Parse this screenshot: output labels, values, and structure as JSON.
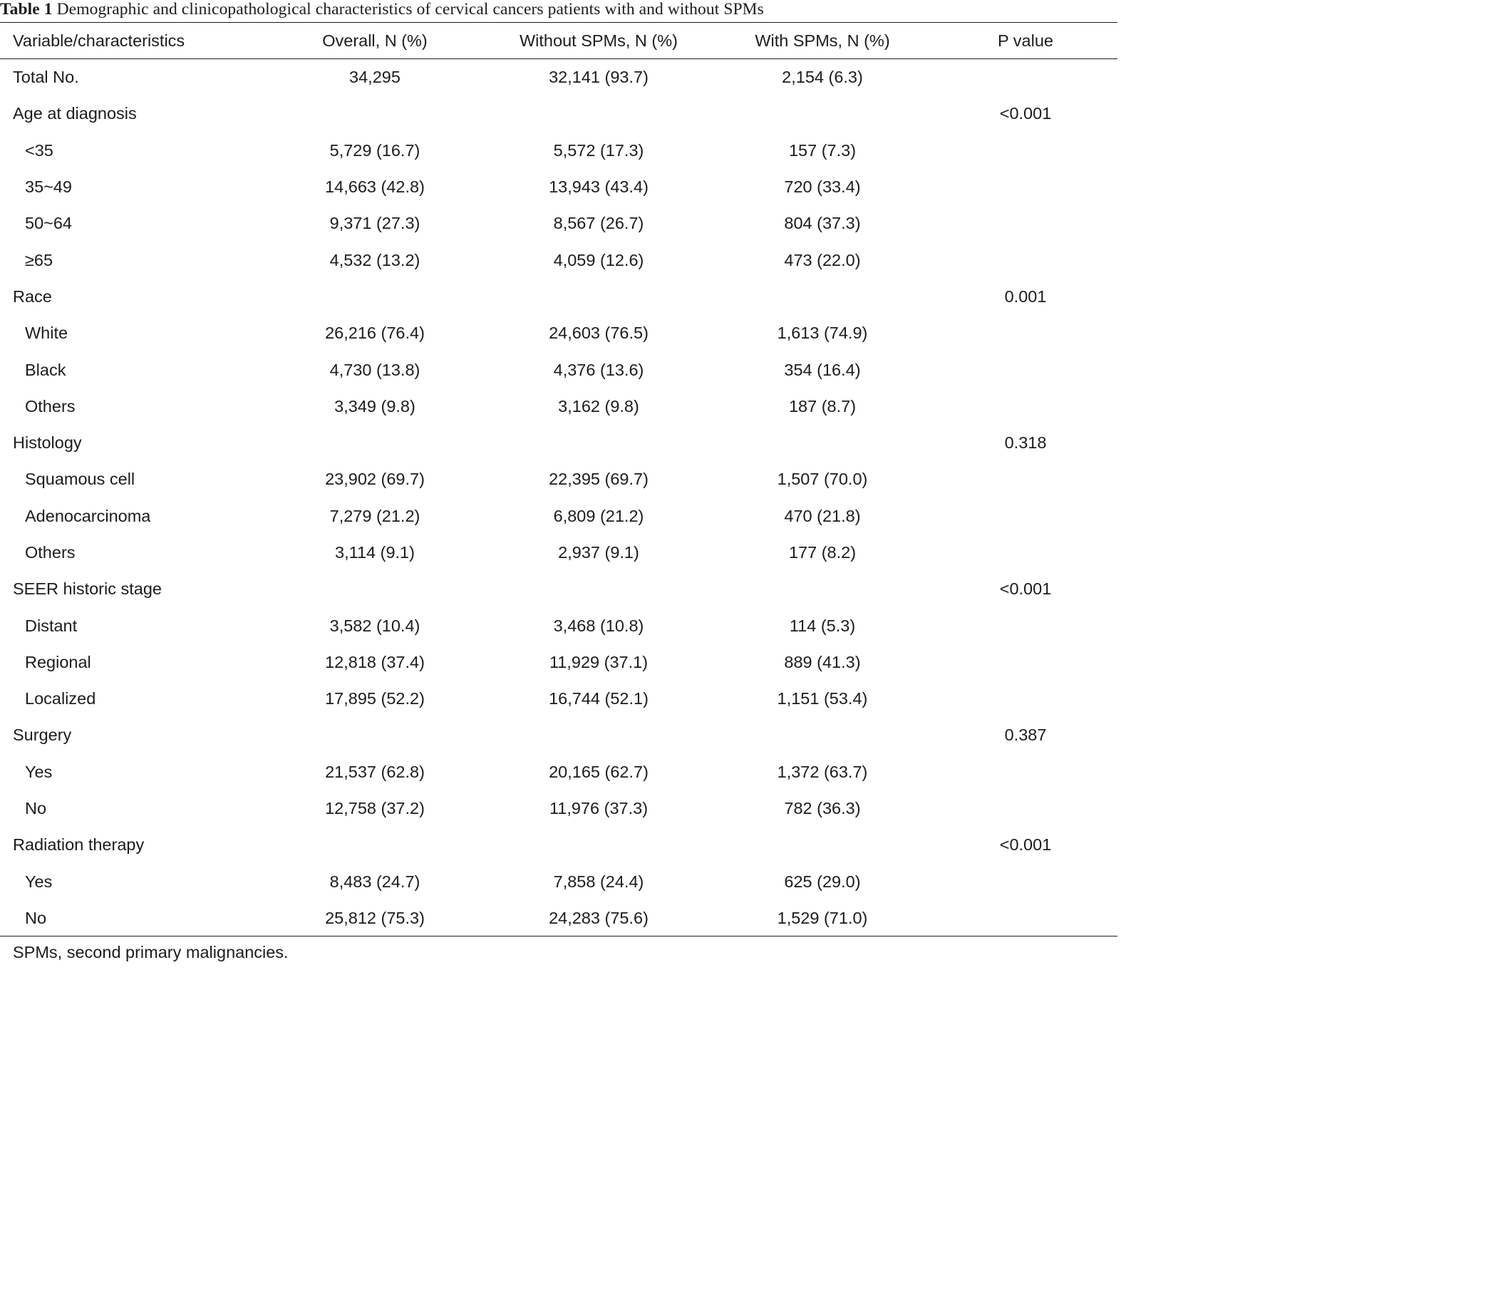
{
  "caption": {
    "number": "Table 1",
    "text": "Demographic and clinicopathological characteristics of cervical cancers patients with and without SPMs"
  },
  "table": {
    "headers": [
      "Variable/characteristics",
      "Overall, N (%)",
      "Without SPMs, N (%)",
      "With SPMs, N (%)",
      "P value"
    ],
    "rows": [
      {
        "label": "Total No.",
        "indent": false,
        "overall": "34,295",
        "without": "32,141 (93.7)",
        "with": "2,154 (6.3)",
        "p": ""
      },
      {
        "label": "Age at diagnosis",
        "indent": false,
        "overall": "",
        "without": "",
        "with": "",
        "p": "<0.001"
      },
      {
        "label": "<35",
        "indent": true,
        "overall": "5,729 (16.7)",
        "without": "5,572 (17.3)",
        "with": "157 (7.3)",
        "p": ""
      },
      {
        "label": "35~49",
        "indent": true,
        "overall": "14,663 (42.8)",
        "without": "13,943 (43.4)",
        "with": "720 (33.4)",
        "p": ""
      },
      {
        "label": "50~64",
        "indent": true,
        "overall": "9,371 (27.3)",
        "without": "8,567 (26.7)",
        "with": "804 (37.3)",
        "p": ""
      },
      {
        "label": "≥65",
        "indent": true,
        "overall": "4,532 (13.2)",
        "without": "4,059 (12.6)",
        "with": "473 (22.0)",
        "p": ""
      },
      {
        "label": "Race",
        "indent": false,
        "overall": "",
        "without": "",
        "with": "",
        "p": "0.001"
      },
      {
        "label": "White",
        "indent": true,
        "overall": "26,216 (76.4)",
        "without": "24,603 (76.5)",
        "with": "1,613 (74.9)",
        "p": ""
      },
      {
        "label": "Black",
        "indent": true,
        "overall": "4,730 (13.8)",
        "without": "4,376 (13.6)",
        "with": "354 (16.4)",
        "p": ""
      },
      {
        "label": "Others",
        "indent": true,
        "overall": "3,349 (9.8)",
        "without": "3,162 (9.8)",
        "with": "187 (8.7)",
        "p": ""
      },
      {
        "label": "Histology",
        "indent": false,
        "overall": "",
        "without": "",
        "with": "",
        "p": "0.318"
      },
      {
        "label": "Squamous cell",
        "indent": true,
        "overall": "23,902 (69.7)",
        "without": "22,395 (69.7)",
        "with": "1,507 (70.0)",
        "p": ""
      },
      {
        "label": "Adenocarcinoma",
        "indent": true,
        "overall": "7,279 (21.2)",
        "without": "6,809 (21.2)",
        "with": "470 (21.8)",
        "p": ""
      },
      {
        "label": "Others",
        "indent": true,
        "overall": "3,114 (9.1)",
        "without": "2,937 (9.1)",
        "with": "177 (8.2)",
        "p": ""
      },
      {
        "label": "SEER historic stage",
        "indent": false,
        "overall": "",
        "without": "",
        "with": "",
        "p": "<0.001"
      },
      {
        "label": "Distant",
        "indent": true,
        "overall": "3,582 (10.4)",
        "without": "3,468 (10.8)",
        "with": "114 (5.3)",
        "p": ""
      },
      {
        "label": "Regional",
        "indent": true,
        "overall": "12,818 (37.4)",
        "without": "11,929 (37.1)",
        "with": "889 (41.3)",
        "p": ""
      },
      {
        "label": "Localized",
        "indent": true,
        "overall": "17,895 (52.2)",
        "without": "16,744 (52.1)",
        "with": "1,151 (53.4)",
        "p": ""
      },
      {
        "label": "Surgery",
        "indent": false,
        "overall": "",
        "without": "",
        "with": "",
        "p": "0.387"
      },
      {
        "label": "Yes",
        "indent": true,
        "overall": "21,537 (62.8)",
        "without": "20,165 (62.7)",
        "with": "1,372 (63.7)",
        "p": ""
      },
      {
        "label": "No",
        "indent": true,
        "overall": "12,758 (37.2)",
        "without": "11,976 (37.3)",
        "with": "782 (36.3)",
        "p": ""
      },
      {
        "label": "Radiation therapy",
        "indent": false,
        "overall": "",
        "without": "",
        "with": "",
        "p": "<0.001"
      },
      {
        "label": "Yes",
        "indent": true,
        "overall": "8,483 (24.7)",
        "without": "7,858 (24.4)",
        "with": "625 (29.0)",
        "p": ""
      },
      {
        "label": "No",
        "indent": true,
        "overall": "25,812 (75.3)",
        "without": "24,283 (75.6)",
        "with": "1,529 (71.0)",
        "p": ""
      }
    ]
  },
  "footnote": "SPMs, second primary malignancies."
}
